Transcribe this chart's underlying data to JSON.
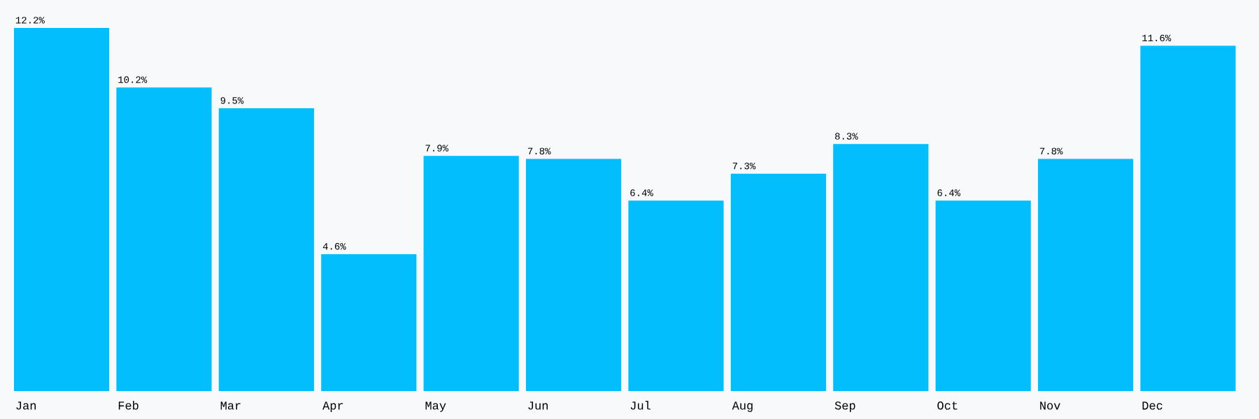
{
  "chart_data": {
    "type": "bar",
    "categories": [
      "Jan",
      "Feb",
      "Mar",
      "Apr",
      "May",
      "Jun",
      "Jul",
      "Aug",
      "Sep",
      "Oct",
      "Nov",
      "Dec"
    ],
    "values": [
      12.2,
      10.2,
      9.5,
      4.6,
      7.9,
      7.8,
      6.4,
      7.3,
      8.3,
      6.4,
      7.8,
      11.6
    ],
    "value_labels": [
      "12.2%",
      "10.2%",
      "9.5%",
      "4.6%",
      "7.9%",
      "7.8%",
      "6.4%",
      "7.3%",
      "8.3%",
      "6.4%",
      "7.8%",
      "11.6%"
    ],
    "color": "#03befc"
  }
}
